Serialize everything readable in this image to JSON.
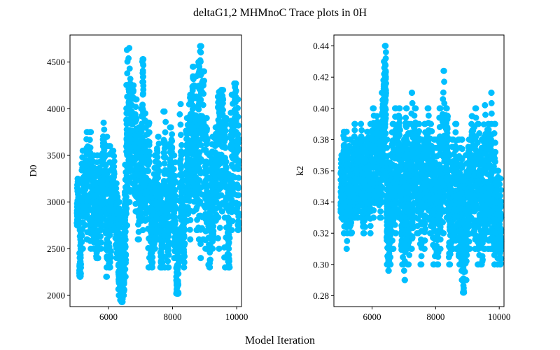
{
  "figure": {
    "title": "deltaG1,2 MHMnoC Trace plots in 0H",
    "xlabel": "Model Iteration"
  },
  "chart_data": [
    {
      "type": "scatter",
      "ylabel": "D0",
      "color": "#00bfff",
      "xlim": [
        4800,
        10150
      ],
      "ylim": [
        1880,
        4790
      ],
      "xticks": [
        6000,
        8000,
        10000
      ],
      "yticks": [
        2000,
        2500,
        3000,
        3500,
        4000,
        4500
      ],
      "x": [
        5000,
        5080,
        5150,
        5250,
        5400,
        5500,
        5600,
        5700,
        5800,
        5900,
        6000,
        6100,
        6200,
        6300,
        6350,
        6400,
        6450,
        6500,
        6550,
        6600,
        6700,
        6800,
        6900,
        7000,
        7050,
        7100,
        7200,
        7300,
        7400,
        7500,
        7600,
        7700,
        7800,
        7900,
        8000,
        8100,
        8200,
        8300,
        8400,
        8500,
        8600,
        8700,
        8800,
        8850,
        8900,
        9000,
        9100,
        9200,
        9300,
        9400,
        9500,
        9600,
        9700,
        9800,
        9900,
        10000
      ],
      "y": [
        2850,
        2300,
        3050,
        3200,
        3100,
        2950,
        2700,
        3000,
        3300,
        2900,
        2700,
        3100,
        2800,
        2500,
        2200,
        1950,
        2350,
        2700,
        3300,
        3700,
        4000,
        3500,
        3200,
        3400,
        4500,
        3300,
        3600,
        2600,
        2900,
        3200,
        2500,
        3100,
        2800,
        3300,
        2900,
        2100,
        3000,
        2700,
        3400,
        3600,
        3800,
        3400,
        3950,
        4650,
        4200,
        3300,
        2700,
        3000,
        3400,
        3600,
        4100,
        3500,
        2500,
        3400,
        3900,
        3200
      ],
      "ymin": [
        2750,
        2200,
        2500,
        2600,
        2500,
        2500,
        2400,
        2500,
        2750,
        2200,
        2300,
        2700,
        2400,
        2000,
        1950,
        1930,
        2000,
        2200,
        2750,
        3000,
        3200,
        2900,
        2600,
        2800,
        2700,
        2800,
        2300,
        2300,
        2500,
        2600,
        2300,
        2300,
        2300,
        2700,
        2400,
        2020,
        2400,
        2300,
        2800,
        2600,
        2900,
        2700,
        2600,
        2400,
        2600,
        2500,
        2300,
        2500,
        2800,
        2500,
        2900,
        2300,
        2300,
        2700,
        2900,
        2700
      ],
      "ymax": [
        3250,
        2700,
        3550,
        3750,
        3750,
        3500,
        3500,
        3500,
        3850,
        3700,
        3600,
        3550,
        3200,
        3000,
        2500,
        2400,
        2900,
        3400,
        4630,
        4650,
        4250,
        4100,
        3800,
        4000,
        4530,
        3950,
        3850,
        3100,
        3500,
        3700,
        3100,
        3970,
        3300,
        3800,
        3500,
        2700,
        4050,
        3300,
        3900,
        4150,
        4450,
        4350,
        4500,
        4670,
        4400,
        3900,
        3500,
        3700,
        3800,
        4180,
        4200,
        3900,
        3300,
        4150,
        4270,
        4100
      ]
    },
    {
      "type": "scatter",
      "ylabel": "k2",
      "color": "#00bfff",
      "xlim": [
        4800,
        10150
      ],
      "ylim": [
        0.273,
        0.447
      ],
      "xticks": [
        6000,
        8000,
        10000
      ],
      "yticks": [
        0.28,
        0.3,
        0.32,
        0.34,
        0.36,
        0.38,
        0.4,
        0.42,
        0.44
      ],
      "x": [
        5000,
        5080,
        5150,
        5250,
        5400,
        5500,
        5600,
        5700,
        5800,
        5900,
        6000,
        6100,
        6200,
        6300,
        6350,
        6400,
        6450,
        6500,
        6550,
        6600,
        6700,
        6800,
        6900,
        7000,
        7050,
        7100,
        7200,
        7300,
        7400,
        7500,
        7600,
        7700,
        7800,
        7900,
        8000,
        8100,
        8200,
        8300,
        8400,
        8500,
        8600,
        8700,
        8800,
        8850,
        8900,
        9000,
        9100,
        9200,
        9300,
        9400,
        9500,
        9600,
        9700,
        9800,
        9900,
        10000
      ],
      "y": [
        0.345,
        0.36,
        0.35,
        0.34,
        0.355,
        0.35,
        0.36,
        0.345,
        0.35,
        0.36,
        0.365,
        0.37,
        0.36,
        0.38,
        0.4,
        0.41,
        0.34,
        0.32,
        0.34,
        0.35,
        0.36,
        0.37,
        0.33,
        0.35,
        0.36,
        0.34,
        0.35,
        0.37,
        0.36,
        0.34,
        0.35,
        0.36,
        0.35,
        0.34,
        0.33,
        0.35,
        0.37,
        0.38,
        0.33,
        0.34,
        0.35,
        0.33,
        0.34,
        0.3,
        0.33,
        0.35,
        0.36,
        0.35,
        0.34,
        0.33,
        0.35,
        0.36,
        0.35,
        0.34,
        0.33,
        0.32
      ],
      "ymin": [
        0.33,
        0.32,
        0.31,
        0.32,
        0.33,
        0.33,
        0.33,
        0.32,
        0.33,
        0.32,
        0.33,
        0.34,
        0.33,
        0.34,
        0.37,
        0.38,
        0.3,
        0.296,
        0.3,
        0.31,
        0.32,
        0.33,
        0.3,
        0.29,
        0.31,
        0.3,
        0.31,
        0.33,
        0.32,
        0.3,
        0.31,
        0.33,
        0.32,
        0.3,
        0.3,
        0.31,
        0.32,
        0.33,
        0.3,
        0.31,
        0.31,
        0.3,
        0.29,
        0.282,
        0.29,
        0.31,
        0.32,
        0.31,
        0.3,
        0.3,
        0.31,
        0.31,
        0.31,
        0.3,
        0.3,
        0.3
      ],
      "ymax": [
        0.37,
        0.385,
        0.385,
        0.38,
        0.39,
        0.38,
        0.39,
        0.38,
        0.385,
        0.39,
        0.4,
        0.395,
        0.39,
        0.41,
        0.43,
        0.44,
        0.38,
        0.35,
        0.37,
        0.39,
        0.4,
        0.4,
        0.37,
        0.38,
        0.4,
        0.39,
        0.41,
        0.4,
        0.39,
        0.38,
        0.39,
        0.4,
        0.39,
        0.38,
        0.38,
        0.4,
        0.424,
        0.4,
        0.37,
        0.38,
        0.39,
        0.38,
        0.38,
        0.35,
        0.37,
        0.38,
        0.395,
        0.4,
        0.39,
        0.38,
        0.402,
        0.39,
        0.41,
        0.39,
        0.36,
        0.355
      ]
    }
  ]
}
